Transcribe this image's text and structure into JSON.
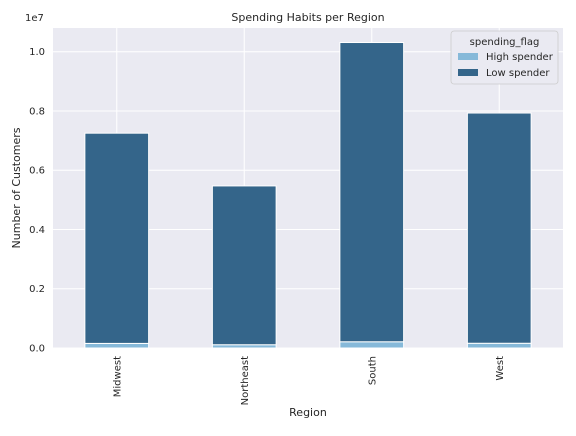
{
  "chart_data": {
    "type": "bar",
    "stacked": true,
    "title": "Spending Habits per Region",
    "xlabel": "Region",
    "ylabel": "Number of Customers",
    "y_offset_label": "1e7",
    "categories": [
      "Midwest",
      "Northeast",
      "South",
      "West"
    ],
    "series": [
      {
        "name": "High spender",
        "values": [
          155000,
          110000,
          210000,
          160000
        ],
        "color": "#86b9d9"
      },
      {
        "name": "Low spender",
        "values": [
          7095000,
          5360000,
          10100000,
          7770000
        ],
        "color": "#34658a"
      }
    ],
    "ylim": [
      0,
      10800000
    ],
    "yticks": [
      {
        "value": 0,
        "label": "0.0"
      },
      {
        "value": 2000000,
        "label": "0.2"
      },
      {
        "value": 4000000,
        "label": "0.4"
      },
      {
        "value": 6000000,
        "label": "0.6"
      },
      {
        "value": 8000000,
        "label": "0.8"
      },
      {
        "value": 10000000,
        "label": "1.0"
      }
    ],
    "grid": true,
    "legend": {
      "title": "spending_flag",
      "placement": "top-right"
    },
    "colors": {
      "plot_background": "#eaeaf2",
      "grid": "#ffffff"
    }
  }
}
